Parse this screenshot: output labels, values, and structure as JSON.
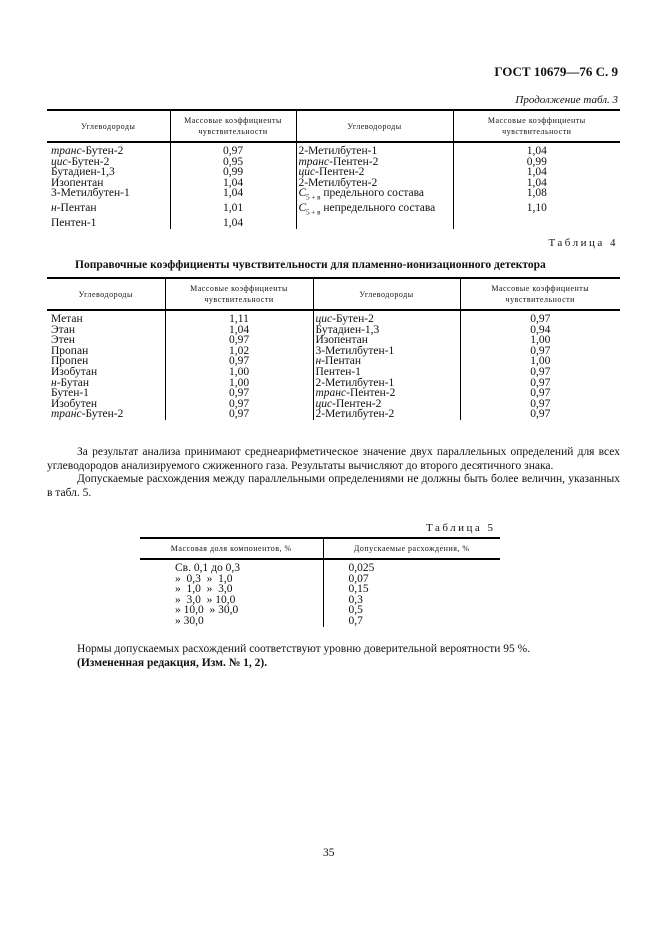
{
  "header": {
    "doc_id": "ГОСТ 10679—76 С. 9"
  },
  "table3": {
    "continuation": "Продолжение табл. 3",
    "headers": [
      "Углеводороды",
      "Массовые коэффициенты чувствительности",
      "Углеводороды",
      "Массовые коэффициенты чувствительности"
    ],
    "rows": [
      {
        "p1": "транс-",
        "n1": "Бутен-2",
        "v1": "0,97",
        "p2": "",
        "n2": "2-Метилбутен-1",
        "v2": "1,04"
      },
      {
        "p1": "цис-",
        "n1": "Бутен-2",
        "v1": "0,95",
        "p2": "транс-",
        "n2": "Пентен-2",
        "v2": "0,99"
      },
      {
        "p1": "",
        "n1": "Бутадиен-1,3",
        "v1": "0,99",
        "p2": "цис-",
        "n2": "Пентен-2",
        "v2": "1,04"
      },
      {
        "p1": "",
        "n1": "Изопентан",
        "v1": "1,04",
        "p2": "",
        "n2": "2-Метилбутен-2",
        "v2": "1,04"
      },
      {
        "p1": "",
        "n1": "3-Метилбутен-1",
        "v1": "1,04",
        "p2": "C",
        "s2": "5 + в",
        "n2": " предельного состава",
        "v2": "1,08"
      },
      {
        "p1": "н-",
        "n1": "Пентан",
        "v1": "1,01",
        "p2": "C",
        "s2": "5 + в",
        "n2": " непредельного состава",
        "v2": "1,10"
      },
      {
        "p1": "",
        "n1": "Пентен-1",
        "v1": "1,04",
        "p2": "",
        "n2": "",
        "v2": ""
      }
    ]
  },
  "table4": {
    "label": "Таблица 4",
    "title": "Поправочные коэффициенты чувствительности для пламенно-ионизационного детектора",
    "headers": [
      "Углеводороды",
      "Массовые коэффициенты чувствительности",
      "Углеводороды",
      "Массовые коэффициенты чувствительности"
    ],
    "rows": [
      {
        "p1": "",
        "n1": "Метан",
        "v1": "1,11",
        "p2": "цис-",
        "n2": "Бутен-2",
        "v2": "0,97"
      },
      {
        "p1": "",
        "n1": "Этан",
        "v1": "1,04",
        "p2": "",
        "n2": "Бутадиен-1,3",
        "v2": "0,94"
      },
      {
        "p1": "",
        "n1": "Этен",
        "v1": "0,97",
        "p2": "",
        "n2": "Изопентан",
        "v2": "1,00"
      },
      {
        "p1": "",
        "n1": "Пропан",
        "v1": "1,02",
        "p2": "",
        "n2": "3-Метилбутен-1",
        "v2": "0,97"
      },
      {
        "p1": "",
        "n1": "Пропен",
        "v1": "0,97",
        "p2": "н-",
        "n2": "Пентан",
        "v2": "1,00"
      },
      {
        "p1": "",
        "n1": "Изобутан",
        "v1": "1,00",
        "p2": "",
        "n2": "Пентен-1",
        "v2": "0,97"
      },
      {
        "p1": "н-",
        "n1": "Бутан",
        "v1": "1,00",
        "p2": "",
        "n2": "2-Метилбутен-1",
        "v2": "0,97"
      },
      {
        "p1": "",
        "n1": "Бутен-1",
        "v1": "0,97",
        "p2": "транс-",
        "n2": "Пентен-2",
        "v2": "0,97"
      },
      {
        "p1": "",
        "n1": "Изобутен",
        "v1": "0,97",
        "p2": "цис-",
        "n2": "Пентен-2",
        "v2": "0,97"
      },
      {
        "p1": "транс-",
        "n1": "Бутен-2",
        "v1": "0,97",
        "p2": "",
        "n2": "2-Метилбутен-2",
        "v2": "0,97"
      }
    ]
  },
  "para1": "За результат анализа принимают среднеарифметическое значение двух параллельных определений для всех углеводородов анализируемого сжиженного газа. Результаты вычисляют до второго десятичного знака.",
  "para2": "Допускаемые расхождения между параллельными определениями не должны быть более величин, указанных в табл. 5.",
  "table5": {
    "label": "Таблица 5",
    "headers": [
      "Массовая доля компонентов, %",
      "Допускаемые расхождения, %"
    ],
    "rows": [
      [
        "Св. 0,1 до 0,3",
        "0,025"
      ],
      [
        "»  0,3  »  1,0",
        "0,07"
      ],
      [
        "»  1,0  »  3,0",
        "0,15"
      ],
      [
        "»  3,0  » 10,0",
        "0,3"
      ],
      [
        "» 10,0  » 30,0",
        "0,5"
      ],
      [
        "» 30,0",
        "0,7"
      ]
    ]
  },
  "para3": "Нормы допускаемых расхождений соответствуют уровню доверительной вероятности 95 %.",
  "para4": "(Измененная редакция, Изм. № 1, 2).",
  "page_number": "35"
}
